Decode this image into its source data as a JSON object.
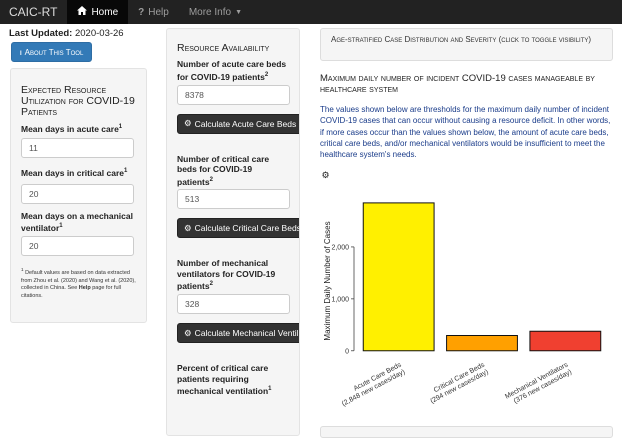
{
  "nav": {
    "brand": "CAIC-RT",
    "home": "Home",
    "help": "Help",
    "more": "More Info"
  },
  "last_updated": {
    "label": "Last Updated:",
    "value": "2020-03-26"
  },
  "about_button": "About This Tool",
  "utilization": {
    "title": "Expected Resource Utilization for COVID-19 Patients",
    "acute_days_label": "Mean days in acute care",
    "acute_days_value": "11",
    "critical_days_label": "Mean days in critical care",
    "critical_days_value": "20",
    "vent_days_label": "Mean days on a mechanical ventilator",
    "vent_days_value": "20",
    "footnote_pre": "Default values are based on data extracted from Zhou et al. (2020) and Wang et al. (2020), collected in China. See ",
    "footnote_link": "Help",
    "footnote_post": " page for full citations."
  },
  "availability": {
    "title": "Resource Availability",
    "acute_beds_label": "Number of acute care beds for COVID-19 patients",
    "acute_beds_value": "8378",
    "acute_btn": "Calculate Acute Care Beds",
    "critical_beds_label": "Number of critical care beds for COVID-19 patients",
    "critical_beds_value": "513",
    "critical_btn": "Calculate Critical Care Beds",
    "vent_label": "Number of mechanical ventilators for COVID-19 patients",
    "vent_value": "328",
    "vent_btn": "Calculate Mechanical Ventilators",
    "percent_label": "Percent of critical care patients requiring mechanical ventilation"
  },
  "main": {
    "collapse_label": "Age-stratified Case Distribution and Severity (click to toggle visibility)",
    "chart_heading": "Maximum daily number of incident COVID-19 cases manageable by healthcare system",
    "description": "The values shown below are thresholds for the maximum daily number of incident COVID-19 cases that can occur without causing a resource deficit. In other words, if more cases occur than the values shown below, the amount of acute care beds, critical care beds, and/or mechanical ventilators would be insufficient to meet the healthcare system's needs."
  },
  "chart_data": {
    "type": "bar",
    "categories": [
      "Acute Care Beds",
      "Critical Care Beds",
      "Mechanical Ventilators"
    ],
    "category_sublabels": [
      "(2,848 new cases/day)",
      "(294 new cases/day)",
      "(376 new cases/day)"
    ],
    "values": [
      2848,
      294,
      376
    ],
    "colors": [
      "#FFF000",
      "#FFA000",
      "#F04030"
    ],
    "ylabel": "Maximum Daily Number of Cases",
    "yticks": [
      0,
      1000,
      2000
    ],
    "ytick_labels": [
      "0",
      "1,000",
      "2,000"
    ],
    "ylim": [
      -120,
      3000
    ]
  }
}
